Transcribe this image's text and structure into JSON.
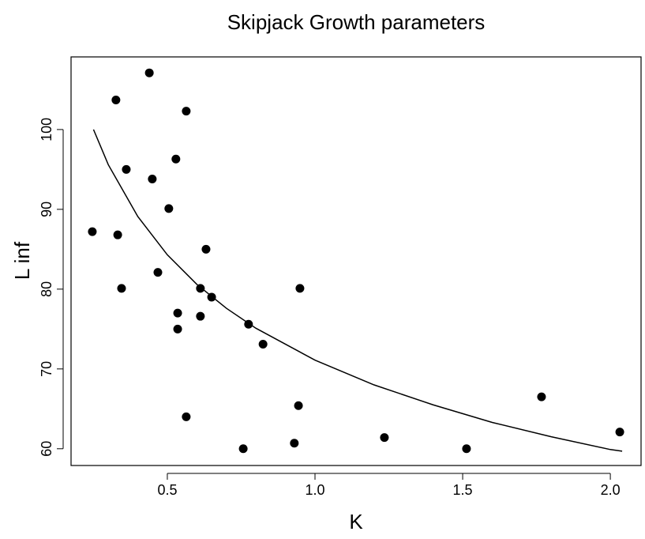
{
  "chart_data": {
    "type": "scatter",
    "title": "Skipjack Growth parameters",
    "x_label": "K",
    "y_label": "L inf",
    "points": {
      "color": "#000000",
      "x": [
        0.246,
        0.326,
        0.332,
        0.345,
        0.361,
        0.439,
        0.449,
        0.468,
        0.505,
        0.529,
        0.564,
        0.535,
        0.535,
        0.564,
        0.612,
        0.612,
        0.631,
        0.65,
        0.757,
        0.775,
        0.824,
        0.93,
        0.944,
        0.949,
        1.235,
        1.513,
        1.767,
        2.032
      ],
      "values": [
        87.2,
        103.7,
        86.8,
        80.1,
        95.0,
        107.1,
        93.8,
        82.1,
        90.1,
        96.3,
        102.3,
        77.0,
        75.0,
        64.0,
        80.1,
        76.6,
        85.0,
        79.0,
        60.0,
        75.6,
        73.1,
        60.7,
        65.4,
        80.1,
        61.4,
        60.0,
        66.5,
        62.1
      ]
    },
    "curve": {
      "color": "#000000",
      "x": [
        0.25,
        0.3,
        0.4,
        0.5,
        0.6,
        0.7,
        0.8,
        1.0,
        1.2,
        1.4,
        1.6,
        1.8,
        2.0,
        2.04
      ],
      "values": [
        100.0,
        95.6,
        89.1,
        84.3,
        80.6,
        77.6,
        75.1,
        71.1,
        68.0,
        65.5,
        63.3,
        61.5,
        59.9,
        59.7
      ]
    },
    "xlim": [
      0.174,
      2.104
    ],
    "ylim": [
      57.9,
      109.1
    ],
    "xticks": [
      0.5,
      {
        "value": 1,
        "label": "1.0"
      },
      1.5,
      {
        "value": 2,
        "label": "2.0"
      }
    ],
    "yticks": [
      60,
      70,
      80,
      90,
      100
    ]
  }
}
